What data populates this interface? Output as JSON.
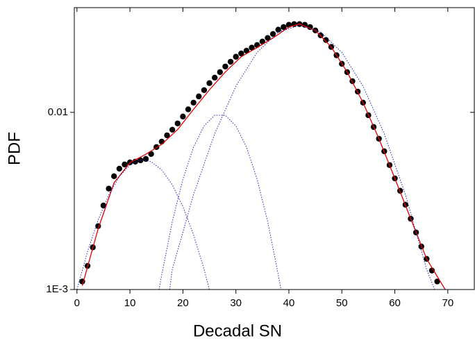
{
  "chart_data": {
    "type": "scatter",
    "xlabel": "Decadal SN",
    "ylabel": "PDF",
    "xlim": [
      -0.5,
      75
    ],
    "xticks": [
      0,
      10,
      20,
      30,
      40,
      50,
      60,
      70
    ],
    "ylim": [
      0.001,
      0.039
    ],
    "yticks": [
      {
        "value": 0.001,
        "label": "1E-3"
      },
      0.01
    ],
    "ylog": true,
    "mirror_axes": true,
    "series": [
      {
        "style": "markers",
        "color": "#000000",
        "x": [
          1,
          2,
          3,
          4,
          5,
          6,
          7,
          8,
          9,
          10,
          11,
          12,
          13,
          14,
          15,
          16,
          17,
          18,
          19,
          20,
          21,
          22,
          23,
          24,
          25,
          26,
          27,
          28,
          29,
          30,
          31,
          32,
          33,
          34,
          35,
          36,
          37,
          38,
          39,
          40,
          41,
          42,
          43,
          44,
          45,
          46,
          47,
          48,
          49,
          50,
          51,
          52,
          53,
          54,
          55,
          56,
          57,
          58,
          59,
          60,
          61,
          62,
          63,
          64,
          65,
          66,
          67,
          68
        ],
        "values": [
          0.00111,
          0.00136,
          0.00173,
          0.00228,
          0.00298,
          0.00371,
          0.00436,
          0.00481,
          0.00508,
          0.00522,
          0.00527,
          0.00536,
          0.00546,
          0.00582,
          0.00637,
          0.00684,
          0.00742,
          0.00798,
          0.00866,
          0.00947,
          0.0104,
          0.01135,
          0.0123,
          0.01335,
          0.01462,
          0.0157,
          0.01687,
          0.01815,
          0.0193,
          0.0206,
          0.0215,
          0.0223,
          0.0232,
          0.024,
          0.0251,
          0.0263,
          0.0277,
          0.0293,
          0.0303,
          0.0312,
          0.0315,
          0.0315,
          0.0312,
          0.0303,
          0.029,
          0.0272,
          0.0256,
          0.0234,
          0.021,
          0.0188,
          0.01687,
          0.015,
          0.0131,
          0.01135,
          0.00964,
          0.00827,
          0.0071,
          0.00603,
          0.00504,
          0.00424,
          0.00361,
          0.00301,
          0.00251,
          0.0021,
          0.00175,
          0.00149,
          0.00128,
          0.00111
        ]
      },
      {
        "style": "line",
        "color": "#e00000",
        "x": [
          1,
          4,
          7,
          10,
          13,
          16,
          19,
          22,
          25,
          28,
          31,
          34,
          37,
          40,
          42,
          45,
          48,
          51,
          54,
          57,
          60,
          63,
          66,
          69.5
        ],
        "values": [
          0.00105,
          0.0022,
          0.004,
          0.0052,
          0.0058,
          0.0066,
          0.008,
          0.0104,
          0.0134,
          0.0169,
          0.0206,
          0.0232,
          0.0263,
          0.0303,
          0.0315,
          0.029,
          0.0234,
          0.0169,
          0.01135,
          0.0071,
          0.00424,
          0.00251,
          0.00149,
          0.001
        ]
      },
      {
        "style": "dotted",
        "color": "#2020c0",
        "x": [
          0,
          2,
          4,
          6,
          8,
          10,
          12,
          14,
          16,
          18,
          20,
          22,
          24,
          25
        ],
        "values": [
          0.001,
          0.00164,
          0.00247,
          0.00342,
          0.00434,
          0.00505,
          0.0054,
          0.00527,
          0.00473,
          0.0039,
          0.00294,
          0.00204,
          0.0013,
          0.001
        ]
      },
      {
        "style": "dotted",
        "color": "#2020c0",
        "x": [
          15.5,
          16,
          18,
          20,
          22,
          24,
          26,
          28,
          30,
          32,
          34,
          36,
          38,
          38.5
        ],
        "values": [
          0.001,
          0.00121,
          0.00242,
          0.0042,
          0.00636,
          0.00839,
          0.00963,
          0.00963,
          0.00839,
          0.00636,
          0.0042,
          0.00242,
          0.00121,
          0.001
        ]
      },
      {
        "style": "dotted",
        "color": "#2020c0",
        "x": [
          17.5,
          18,
          22,
          26,
          30,
          34,
          38,
          42,
          46,
          50,
          54,
          58,
          62,
          66,
          67.5
        ],
        "values": [
          0.001,
          0.0013,
          0.00343,
          0.00758,
          0.01404,
          0.0218,
          0.0284,
          0.031,
          0.0284,
          0.0218,
          0.01404,
          0.00758,
          0.00343,
          0.0013,
          0.001
        ]
      }
    ]
  }
}
